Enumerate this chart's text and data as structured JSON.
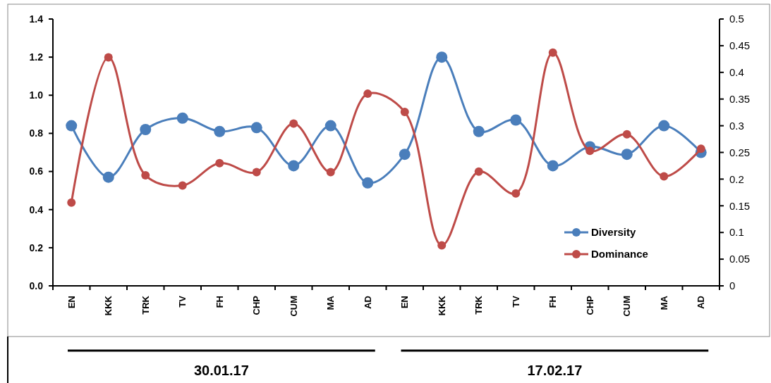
{
  "chart_data": {
    "type": "line",
    "categories": [
      "EN",
      "KKK",
      "TRK",
      "TV",
      "FH",
      "CHP",
      "CUM",
      "MA",
      "AD",
      "EN",
      "KKK",
      "TRK",
      "TV",
      "FH",
      "CHP",
      "CUM",
      "MA",
      "AD"
    ],
    "series": [
      {
        "name": "Diversity",
        "color": "#4a7ebb",
        "values": [
          0.84,
          0.57,
          0.82,
          0.88,
          0.81,
          0.83,
          0.63,
          0.84,
          0.54,
          0.69,
          1.2,
          0.81,
          0.87,
          0.63,
          0.73,
          0.69,
          0.84,
          0.7
        ]
      },
      {
        "name": "Dominance",
        "color": "#be4b48",
        "axis": "y2",
        "values": [
          0.156,
          0.428,
          0.207,
          0.188,
          0.23,
          0.213,
          0.304,
          0.213,
          0.36,
          0.326,
          0.076,
          0.214,
          0.173,
          0.437,
          0.253,
          0.284,
          0.205,
          0.257
        ]
      }
    ],
    "ylim": [
      0,
      1.4
    ],
    "yticks": [
      {
        "value": 0,
        "label": "0.0"
      },
      0.2,
      0.4,
      0.6,
      0.8,
      {
        "value": 1,
        "label": "1.0"
      },
      1.2,
      1.4
    ],
    "y2lim": [
      0,
      0.5
    ],
    "y2ticks": [
      0,
      0.05,
      0.1,
      0.15,
      0.2,
      0.25,
      0.3,
      0.35,
      0.4,
      0.45,
      0.5
    ],
    "marker": "circle",
    "line_style": "solid",
    "legend": "bottom right",
    "grid": false,
    "annotations": [
      "30.01.17",
      "17.02.17"
    ]
  }
}
